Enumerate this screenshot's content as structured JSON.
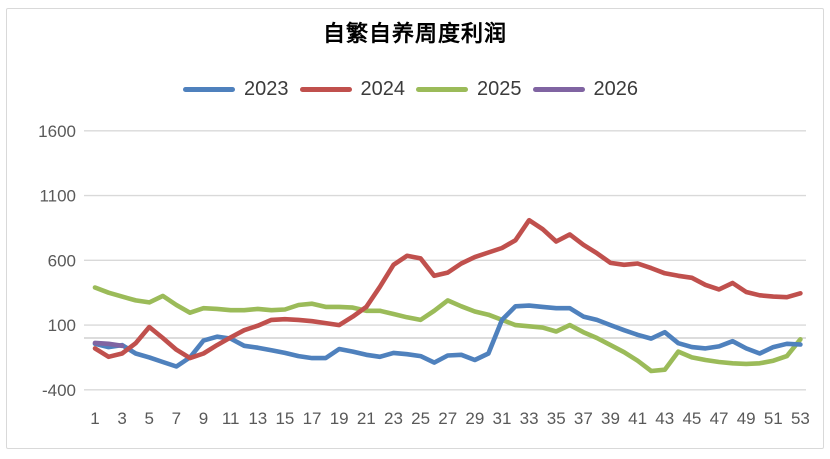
{
  "title": "自繁自养周度利润",
  "chart_data": {
    "type": "line",
    "title": "自繁自养周度利润",
    "xlabel": "",
    "ylabel": "",
    "legend_position": "top",
    "grid": true,
    "ylim": [
      -400,
      1600
    ],
    "y_ticks": [
      1600,
      1100,
      600,
      100,
      -400
    ],
    "x_ticks": [
      1,
      3,
      5,
      7,
      9,
      11,
      13,
      15,
      17,
      19,
      21,
      23,
      25,
      27,
      29,
      31,
      33,
      35,
      37,
      39,
      41,
      43,
      45,
      47,
      49,
      51,
      53
    ],
    "x": [
      1,
      2,
      3,
      4,
      5,
      6,
      7,
      8,
      9,
      10,
      11,
      12,
      13,
      14,
      15,
      16,
      17,
      18,
      19,
      20,
      21,
      22,
      23,
      24,
      25,
      26,
      27,
      28,
      29,
      30,
      31,
      32,
      33,
      34,
      35,
      36,
      37,
      38,
      39,
      40,
      41,
      42,
      43,
      44,
      45,
      46,
      47,
      48,
      49,
      50,
      51,
      52,
      53
    ],
    "grid_color": "#d9d9d9",
    "zero_line_color": "#c6c6c6",
    "tick_color": "#595959",
    "series": [
      {
        "name": "2023",
        "color": "#4F81BD",
        "values": [
          -45,
          -70,
          -55,
          -120,
          -150,
          -185,
          -220,
          -150,
          -20,
          10,
          -5,
          -60,
          -75,
          -95,
          -115,
          -140,
          -155,
          -155,
          -85,
          -105,
          -130,
          -145,
          -115,
          -125,
          -140,
          -190,
          -135,
          -130,
          -170,
          -120,
          140,
          245,
          250,
          240,
          230,
          230,
          165,
          140,
          100,
          60,
          25,
          -5,
          45,
          -40,
          -70,
          -80,
          -65,
          -25,
          -80,
          -120,
          -70,
          -45,
          -50
        ]
      },
      {
        "name": "2024",
        "color": "#C0504D",
        "values": [
          -80,
          -145,
          -120,
          -40,
          85,
          0,
          -90,
          -155,
          -120,
          -55,
          5,
          60,
          95,
          140,
          145,
          140,
          130,
          115,
          100,
          165,
          240,
          395,
          565,
          635,
          615,
          480,
          505,
          575,
          625,
          660,
          695,
          755,
          910,
          840,
          745,
          800,
          720,
          655,
          580,
          565,
          575,
          540,
          500,
          480,
          465,
          410,
          375,
          425,
          355,
          330,
          320,
          315,
          345
        ]
      },
      {
        "name": "2025",
        "color": "#9BBB59",
        "values": [
          390,
          350,
          320,
          290,
          275,
          325,
          255,
          195,
          230,
          225,
          215,
          215,
          225,
          215,
          220,
          255,
          265,
          240,
          240,
          235,
          210,
          210,
          185,
          160,
          140,
          210,
          290,
          245,
          205,
          180,
          140,
          100,
          90,
          80,
          50,
          100,
          45,
          0,
          -55,
          -110,
          -175,
          -255,
          -245,
          -105,
          -150,
          -170,
          -185,
          -195,
          -200,
          -195,
          -175,
          -140,
          -10
        ]
      },
      {
        "name": "2026",
        "color": "#8064A2",
        "values": [
          -38,
          -45,
          -60
        ]
      }
    ]
  }
}
